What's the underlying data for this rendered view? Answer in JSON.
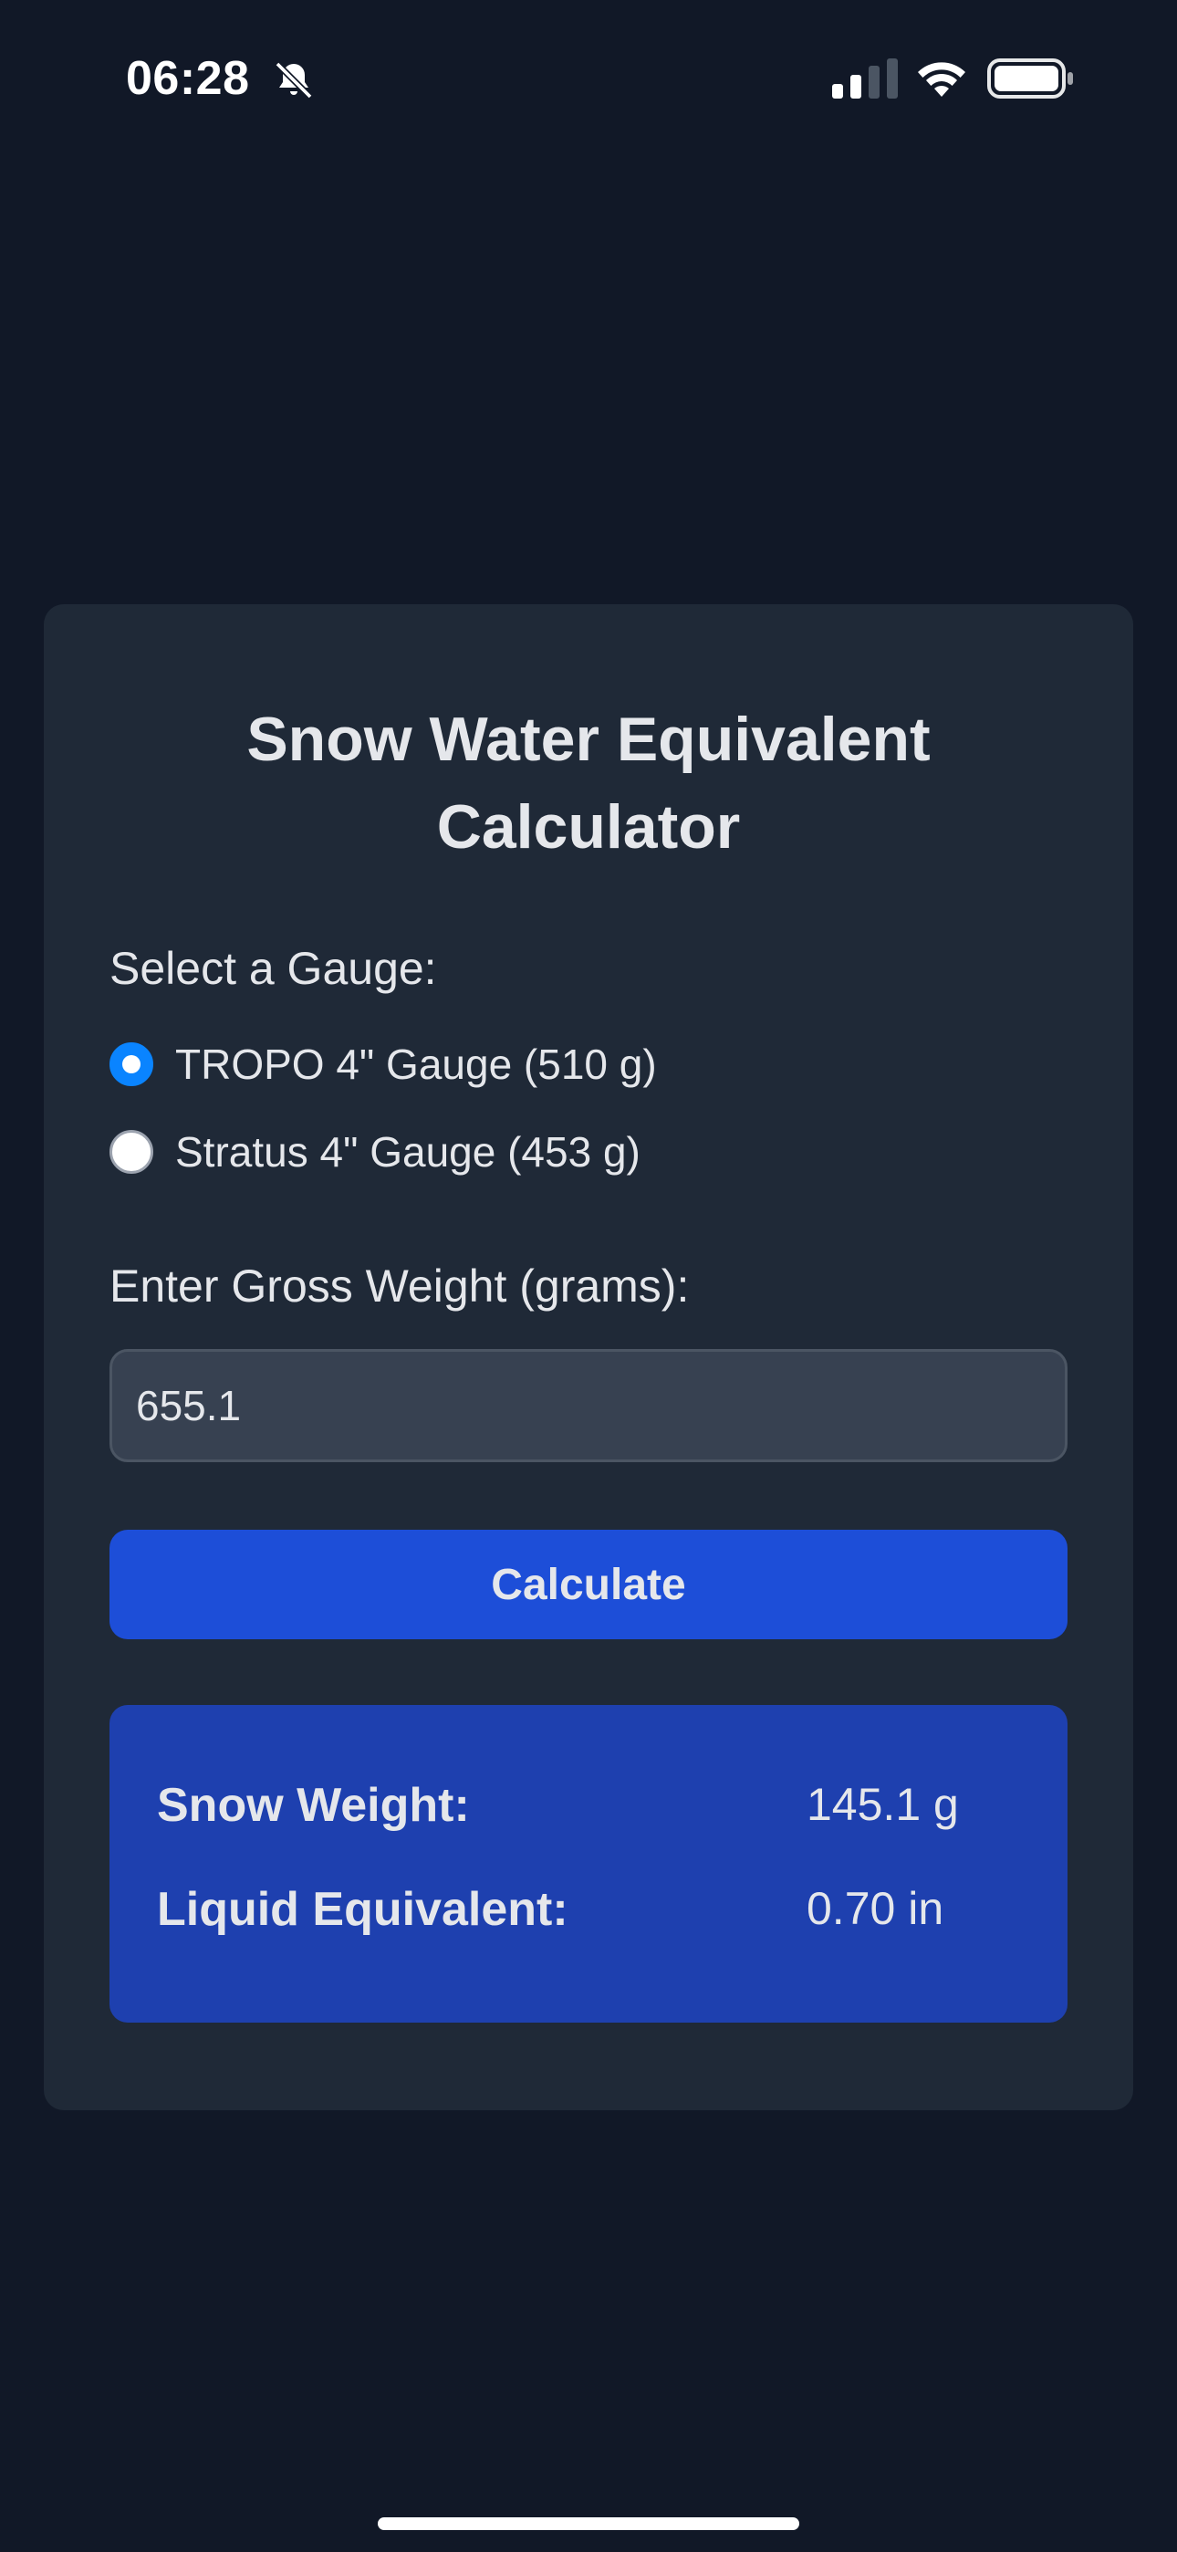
{
  "status_bar": {
    "time": "06:28",
    "icons": [
      "bell-slash-icon",
      "signal-icon",
      "wifi-icon",
      "battery-icon"
    ]
  },
  "calculator": {
    "title_line1": "Snow Water Equivalent",
    "title_line2": "Calculator",
    "gauge_label": "Select a Gauge:",
    "gauges": [
      {
        "label": "TROPO 4\" Gauge (510 g)",
        "selected": true
      },
      {
        "label": "Stratus 4\" Gauge (453 g)",
        "selected": false
      }
    ],
    "weight_label": "Enter Gross Weight (grams):",
    "weight_value": "655.1",
    "calculate_label": "Calculate",
    "results": {
      "snow_weight_label": "Snow Weight:",
      "snow_weight_value": "145.1 g",
      "liquid_label": "Liquid Equivalent:",
      "liquid_value": "0.70 in"
    }
  },
  "colors": {
    "background": "#111827",
    "card": "#1f2937",
    "accent": "#1d4ed8",
    "results_panel": "#1e40af",
    "radio_selected": "#0a84ff"
  }
}
